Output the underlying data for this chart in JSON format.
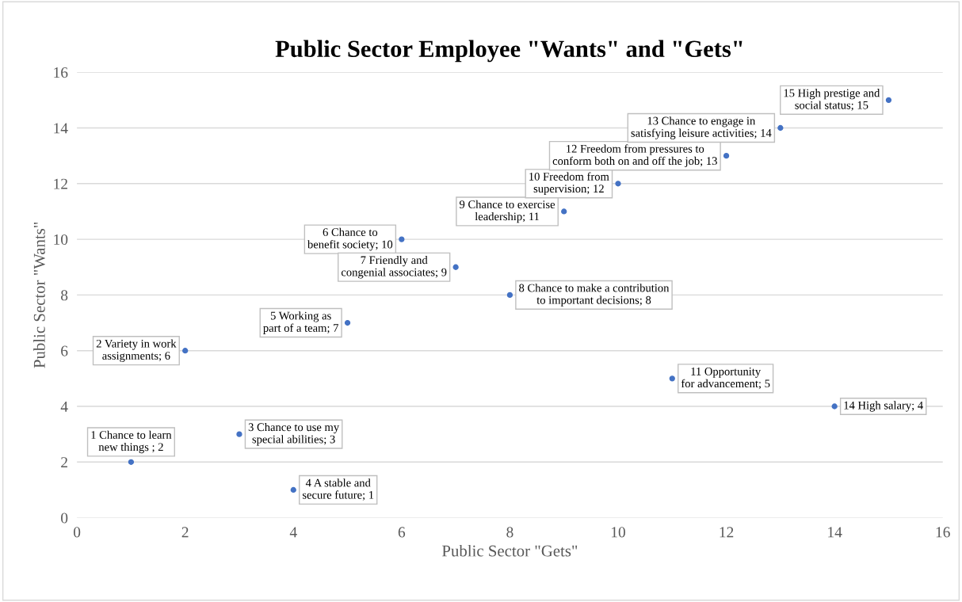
{
  "chart_data": {
    "type": "scatter",
    "title": "Public Sector Employee \"Wants\" and \"Gets\"",
    "xlabel": "Public Sector \"Gets\"",
    "ylabel": "Public Sector \"Wants\"",
    "x": [
      1,
      2,
      3,
      4,
      5,
      6,
      7,
      8,
      9,
      10,
      11,
      12,
      13,
      14,
      15
    ],
    "values": [
      2,
      6,
      3,
      1,
      7,
      10,
      9,
      8,
      11,
      12,
      5,
      13,
      14,
      4,
      15
    ],
    "value_labels": [
      "1 Chance to learn new things ; 2",
      "2 Variety in work assignments; 6",
      "3 Chance to use my special abilities; 3",
      "4 A stable and secure future; 1",
      "5 Working as part of a team; 7",
      "6 Chance to benefit society; 10",
      "7 Friendly and congenial associates; 9",
      "8 Chance to make a contribution to important decisions; 8",
      "9 Chance to exercise leadership; 11",
      "10 Freedom from supervision; 12",
      "11 Opportunity for advancement; 5",
      "12 Freedom from pressures to conform both on and off the job; 13",
      "13 Chance to engage in satisfying leisure activities; 14",
      "14 High salary; 4",
      "15 High prestige and social status; 15"
    ],
    "color": "#4472c4",
    "marker": "circle",
    "xlim": [
      0,
      16
    ],
    "xticks": [
      0,
      2,
      4,
      6,
      8,
      10,
      12,
      14,
      16
    ],
    "ylim": [
      0,
      16
    ],
    "yticks": [
      0,
      2,
      4,
      6,
      8,
      10,
      12,
      14,
      16
    ],
    "grid": "y"
  }
}
